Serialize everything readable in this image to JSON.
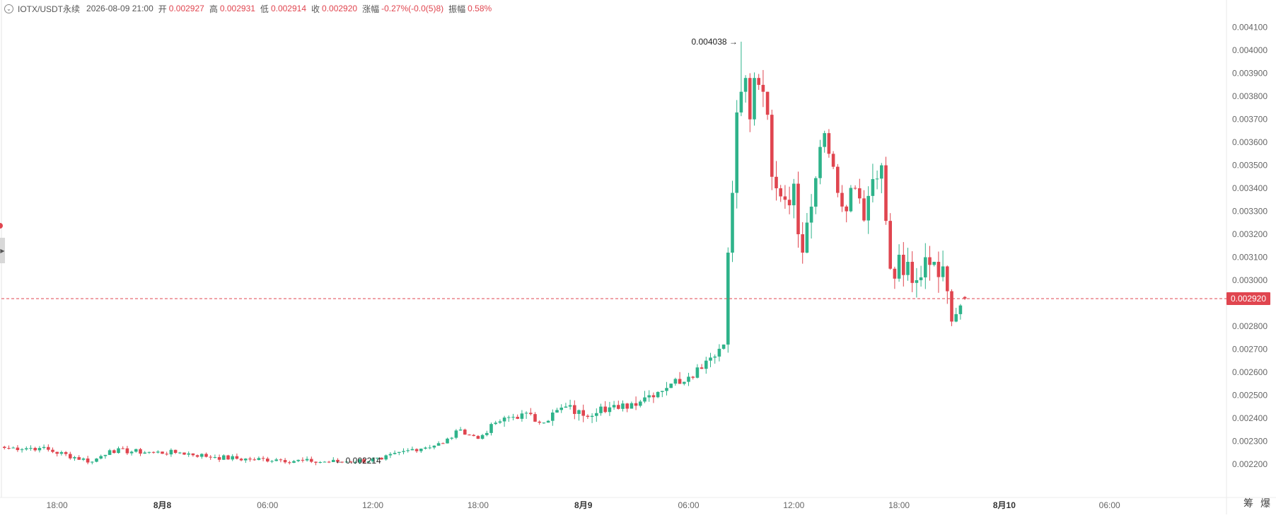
{
  "header": {
    "symbol": "IOTX/USDT永续",
    "datetime": "2026-08-09 21:00",
    "open_label": "开",
    "open": "0.002927",
    "high_label": "高",
    "high": "0.002931",
    "low_label": "低",
    "low": "0.002914",
    "close_label": "收",
    "close": "0.002920",
    "change_label": "涨幅",
    "change": "-0.27%(-0.0(5)8)",
    "amplitude_label": "振幅",
    "amplitude": "0.58%"
  },
  "corner": {
    "btn1": "筹",
    "btn2": "爆"
  },
  "chart_data": {
    "type": "candlestick",
    "y_ticks": [
      "0.002200",
      "0.002300",
      "0.002400",
      "0.002500",
      "0.002600",
      "0.002700",
      "0.002800",
      "0.003000",
      "0.003100",
      "0.003200",
      "0.003300",
      "0.003400",
      "0.003500",
      "0.003600",
      "0.003700",
      "0.003800",
      "0.003900",
      "0.004000",
      "0.004100"
    ],
    "ylim": [
      0.00215,
      0.00413
    ],
    "x_ticks": [
      "18:00",
      "8月8",
      "06:00",
      "12:00",
      "18:00",
      "8月9",
      "06:00",
      "12:00",
      "18:00",
      "8月10",
      "06:00"
    ],
    "x_ticks_bold": [
      false,
      true,
      false,
      false,
      false,
      true,
      false,
      false,
      false,
      true,
      false
    ],
    "x_tick_bar_index": [
      12,
      36,
      60,
      84,
      108,
      132,
      156,
      180,
      204,
      228,
      252
    ],
    "last_price": 0.00292,
    "last_price_label": "0.002920",
    "max_label": "0.004038",
    "min_label": "0.002214",
    "max_bar_index": 168,
    "min_bar_index": 75,
    "up_color": "#2eb38a",
    "down_color": "#e0454f",
    "bar_interval": "1h",
    "waypoints": [
      [
        0,
        0.00227
      ],
      [
        8,
        0.00227
      ],
      [
        20,
        0.00221
      ],
      [
        24,
        0.00226
      ],
      [
        34,
        0.00225
      ],
      [
        40,
        0.00225
      ],
      [
        48,
        0.00223
      ],
      [
        56,
        0.00222
      ],
      [
        62,
        0.00222
      ],
      [
        70,
        0.00221
      ],
      [
        76,
        0.00221
      ],
      [
        86,
        0.00222
      ],
      [
        92,
        0.00226
      ],
      [
        100,
        0.00229
      ],
      [
        104,
        0.00235
      ],
      [
        108,
        0.00231
      ],
      [
        112,
        0.00238
      ],
      [
        118,
        0.00242
      ],
      [
        122,
        0.00238
      ],
      [
        128,
        0.00245
      ],
      [
        132,
        0.00241
      ],
      [
        136,
        0.00245
      ],
      [
        140,
        0.00244
      ],
      [
        146,
        0.00249
      ],
      [
        152,
        0.00255
      ],
      [
        156,
        0.00258
      ],
      [
        160,
        0.00265
      ],
      [
        164,
        0.00272
      ],
      [
        165,
        0.00312
      ],
      [
        166,
        0.00338
      ],
      [
        167,
        0.00373
      ],
      [
        168,
        0.00382
      ],
      [
        169,
        0.00388
      ],
      [
        170,
        0.0037
      ],
      [
        171,
        0.00388
      ],
      [
        172,
        0.00385
      ],
      [
        173,
        0.00382
      ],
      [
        174,
        0.00372
      ],
      [
        175,
        0.00345
      ],
      [
        176,
        0.0034
      ],
      [
        178,
        0.00335
      ],
      [
        180,
        0.00342
      ],
      [
        181,
        0.0032
      ],
      [
        182,
        0.00312
      ],
      [
        184,
        0.00332
      ],
      [
        186,
        0.00358
      ],
      [
        187,
        0.00364
      ],
      [
        188,
        0.00355
      ],
      [
        190,
        0.00338
      ],
      [
        192,
        0.0033
      ],
      [
        194,
        0.0034
      ],
      [
        196,
        0.00326
      ],
      [
        198,
        0.00344
      ],
      [
        200,
        0.0035
      ],
      [
        202,
        0.00305
      ],
      [
        206,
        0.00308
      ],
      [
        208,
        0.003
      ],
      [
        210,
        0.0031
      ],
      [
        212,
        0.00308
      ],
      [
        214,
        0.00306
      ],
      [
        216,
        0.00282
      ],
      [
        218,
        0.00289
      ],
      [
        219,
        0.00292
      ]
    ]
  }
}
